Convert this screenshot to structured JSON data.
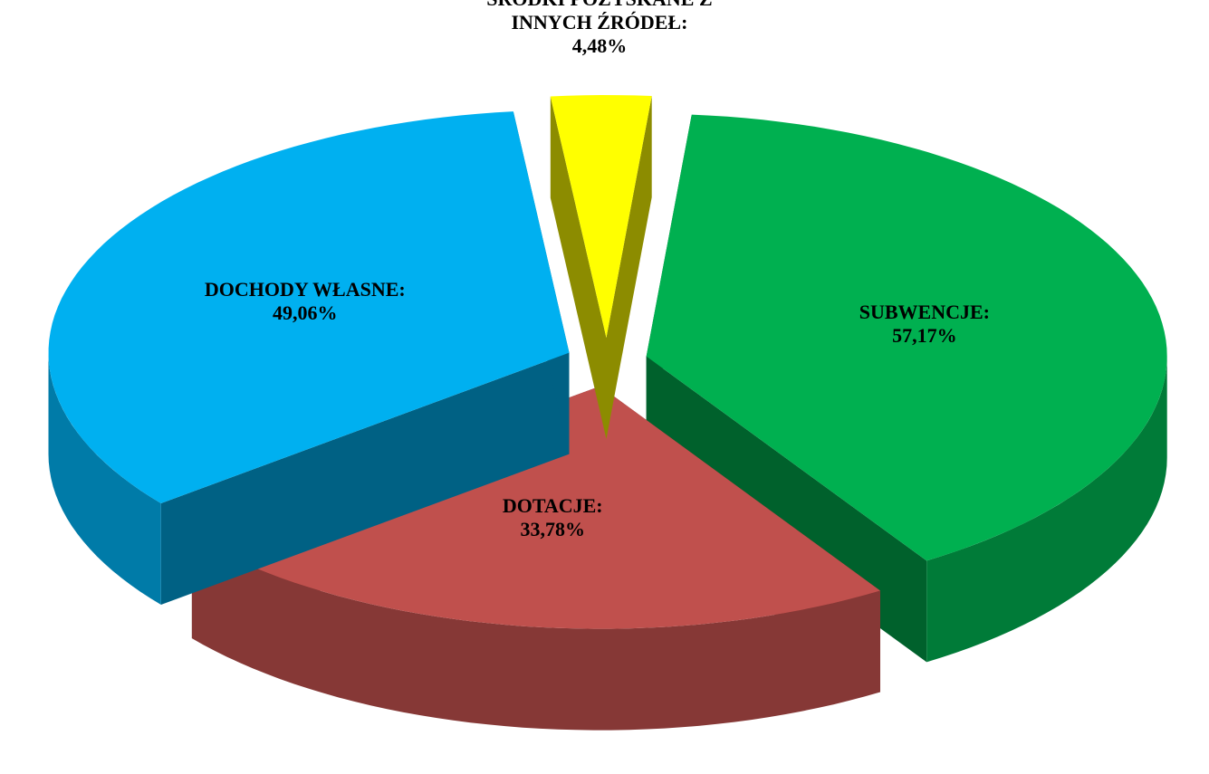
{
  "chart_data": {
    "type": "pie",
    "categories": [
      "SUBWENCJE:",
      "DOTACJE:",
      "DOCHODY WŁASNE:",
      "ŚRODKI POZYSKANE Z INNYCH ŹRÓDEŁ:"
    ],
    "values": [
      57.17,
      33.78,
      49.06,
      4.48
    ],
    "value_labels": [
      "57,17%",
      "33,78%",
      "49,06%",
      "4,48%"
    ],
    "colors": [
      "#00b050",
      "#c0504d",
      "#00b0f0",
      "#ffff00"
    ]
  }
}
